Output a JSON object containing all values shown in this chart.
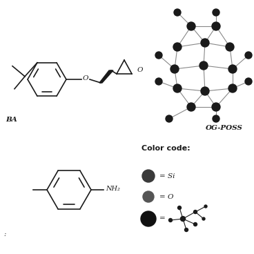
{
  "bg_color": "#ffffff",
  "dark": "#1a1a1a",
  "gray": "#666666",
  "label_ba": "BA",
  "label_poss": "OG-POSS",
  "color_code_title": "Color code:",
  "cc_si": "= Si",
  "cc_o": "= O",
  "cc_eq": "="
}
